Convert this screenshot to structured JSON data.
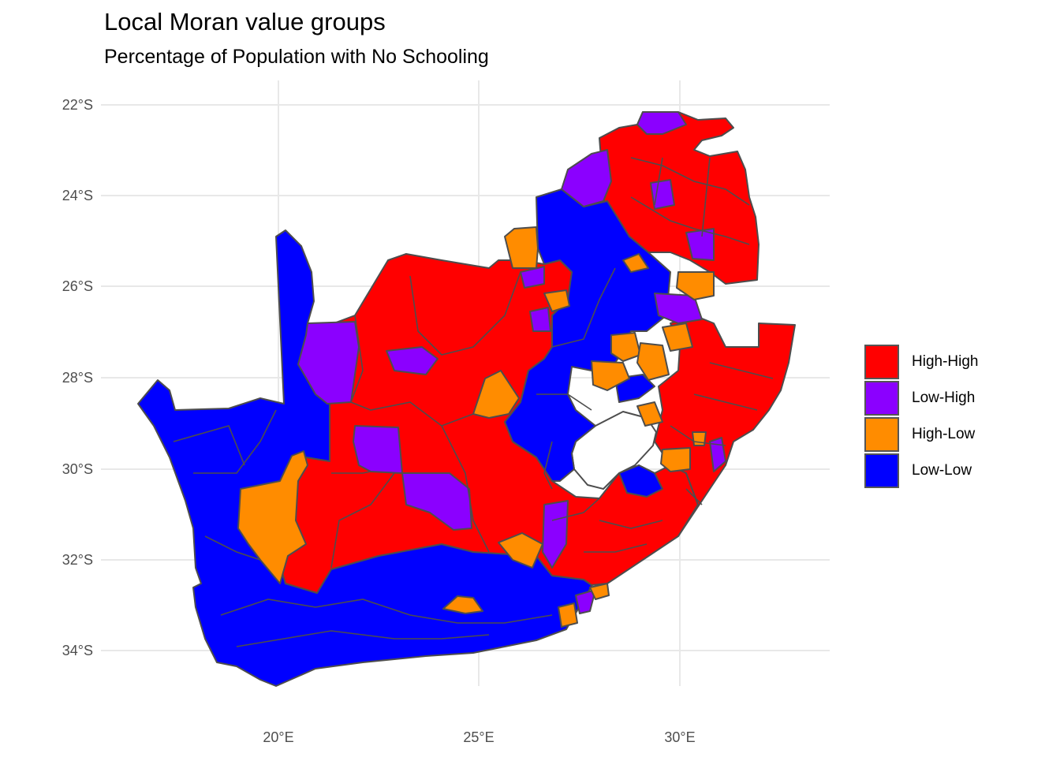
{
  "title": "Local Moran value groups",
  "subtitle": "Percentage of Population with No Schooling",
  "colors": {
    "High-High": "#ff0000",
    "Low-High": "#8b00ff",
    "High-Low": "#ff8c00",
    "Low-Low": "#0000ff",
    "border": "#4d4d4d",
    "grid": "#e6e6e6"
  },
  "axes": {
    "x_ticks": [
      "20°E",
      "25°E",
      "30°E"
    ],
    "y_ticks": [
      "22°S",
      "24°S",
      "26°S",
      "28°S",
      "30°S",
      "32°S",
      "34°S"
    ]
  },
  "legend": {
    "items": [
      {
        "label": "High-High",
        "color": "#ff0000"
      },
      {
        "label": "Low-High",
        "color": "#8b00ff"
      },
      {
        "label": "High-Low",
        "color": "#ff8c00"
      },
      {
        "label": "Low-Low",
        "color": "#0000ff"
      }
    ]
  }
}
